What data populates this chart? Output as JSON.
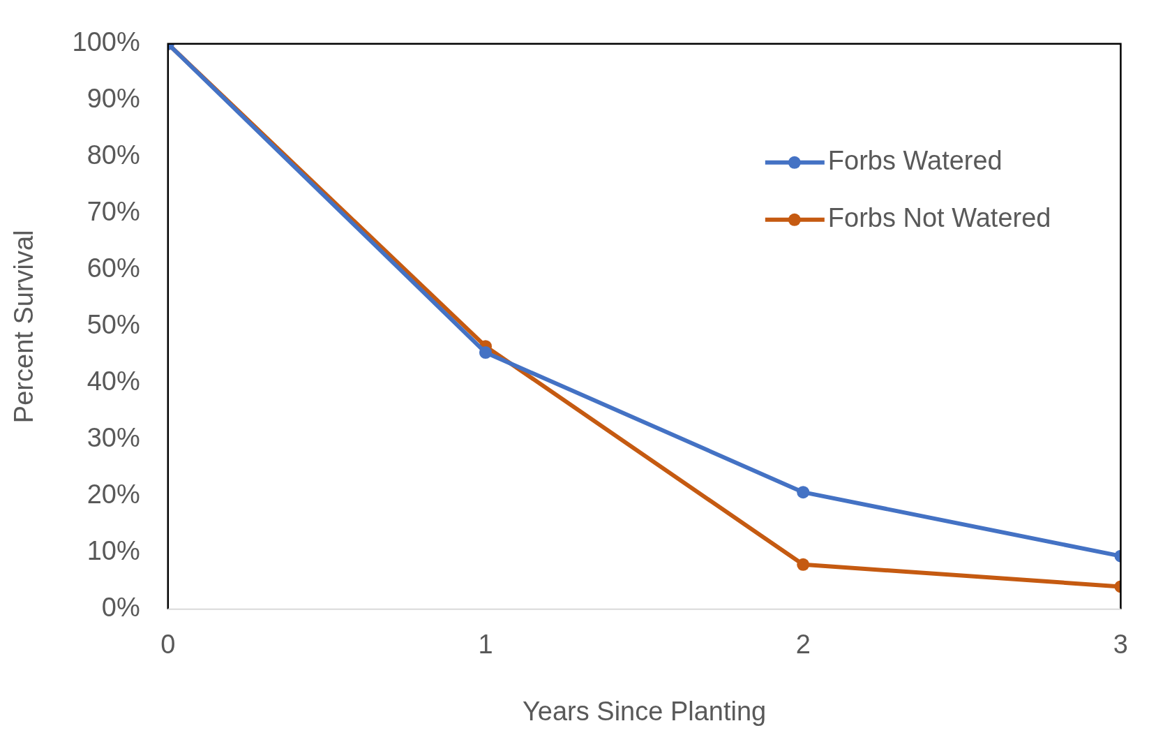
{
  "chart_data": {
    "type": "line",
    "xlabel": "Years Since Planting",
    "ylabel": "Percent Survival",
    "x": [
      0,
      1,
      2,
      3
    ],
    "series": [
      {
        "name": "Forbs Watered",
        "color": "#4472c4",
        "values": [
          100,
          45.4,
          20.7,
          9.4
        ]
      },
      {
        "name": "Forbs Not Watered",
        "color": "#c55a11",
        "values": [
          100,
          46.5,
          7.9,
          4.0
        ]
      }
    ],
    "xlim": [
      0,
      3
    ],
    "xticks": [
      0,
      1,
      2,
      3
    ],
    "ylim": [
      0,
      100
    ],
    "yticks": [
      {
        "value": 0,
        "label": "0%"
      },
      {
        "value": 10,
        "label": "10%"
      },
      {
        "value": 20,
        "label": "20%"
      },
      {
        "value": 30,
        "label": "30%"
      },
      {
        "value": 40,
        "label": "40%"
      },
      {
        "value": 50,
        "label": "50%"
      },
      {
        "value": 60,
        "label": "60%"
      },
      {
        "value": 70,
        "label": "70%"
      },
      {
        "value": 80,
        "label": "80%"
      },
      {
        "value": 90,
        "label": "90%"
      },
      {
        "value": 100,
        "label": "100%"
      }
    ],
    "grid": false,
    "legend": "top right",
    "marker": "circle",
    "line_style": "solid"
  }
}
